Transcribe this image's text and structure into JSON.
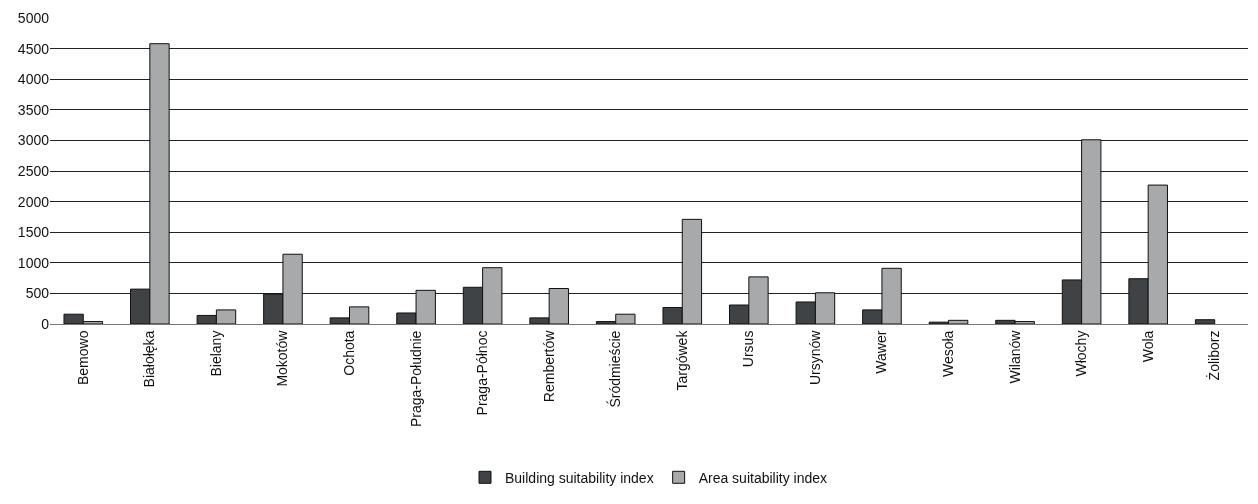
{
  "chart_data": {
    "type": "bar",
    "categories": [
      "Bemowo",
      "Białołęka",
      "Bielany",
      "Mokotów",
      "Ochota",
      "Praga-Południe",
      "Praga-Północ",
      "Rembertów",
      "Śródmieście",
      "Targówek",
      "Ursus",
      "Ursynów",
      "Wawer",
      "Wesoła",
      "Wilanów",
      "Włochy",
      "Wola",
      "Żoliborz"
    ],
    "series": [
      {
        "name": "Building suitability index",
        "color": "#404345",
        "values": [
          160,
          570,
          140,
          490,
          100,
          180,
          600,
          100,
          40,
          270,
          310,
          360,
          230,
          30,
          60,
          720,
          740,
          70
        ]
      },
      {
        "name": "Area suitability index",
        "color": "#a8a9ab",
        "values": [
          40,
          4580,
          230,
          1140,
          280,
          550,
          920,
          580,
          160,
          1710,
          770,
          510,
          910,
          60,
          40,
          3010,
          2270,
          null
        ]
      }
    ],
    "ylim": [
      0,
      5000
    ],
    "yticks": [
      0,
      500,
      1000,
      1500,
      2000,
      2500,
      3000,
      3500,
      4000,
      4500,
      5000
    ],
    "grid": "y",
    "legend": "bottom"
  }
}
